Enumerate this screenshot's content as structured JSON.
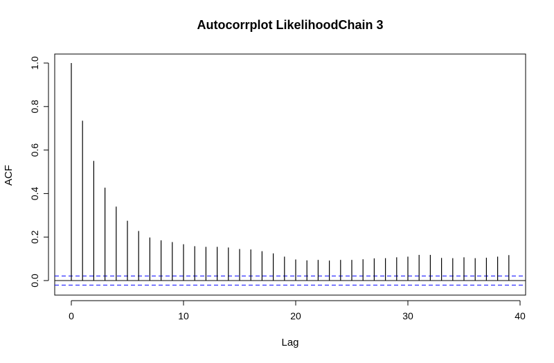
{
  "chart_data": {
    "type": "bar",
    "title": "Autocorrplot LikelihoodChain 3",
    "xlabel": "Lag",
    "ylabel": "ACF",
    "xlim": [
      0,
      40
    ],
    "ylim": [
      0,
      1
    ],
    "x_ticks": [
      "0",
      "10",
      "20",
      "30",
      "40"
    ],
    "y_ticks": [
      "0.0",
      "0.2",
      "0.4",
      "0.6",
      "0.8",
      "1.0"
    ],
    "lags": [
      0,
      1,
      2,
      3,
      4,
      5,
      6,
      7,
      8,
      9,
      10,
      11,
      12,
      13,
      14,
      15,
      16,
      17,
      18,
      19,
      20,
      21,
      22,
      23,
      24,
      25,
      26,
      27,
      28,
      29,
      30,
      31,
      32,
      33,
      34,
      35,
      36,
      37,
      38,
      39
    ],
    "values": [
      1.0,
      0.735,
      0.55,
      0.427,
      0.34,
      0.275,
      0.228,
      0.198,
      0.185,
      0.177,
      0.167,
      0.158,
      0.155,
      0.155,
      0.152,
      0.145,
      0.143,
      0.135,
      0.125,
      0.11,
      0.097,
      0.093,
      0.095,
      0.092,
      0.095,
      0.095,
      0.098,
      0.102,
      0.103,
      0.107,
      0.11,
      0.118,
      0.118,
      0.104,
      0.103,
      0.107,
      0.103,
      0.105,
      0.11,
      0.117
    ],
    "confidence_bound": 0.021,
    "confidence_color": "#0000ff",
    "bar_color": "#000000"
  }
}
